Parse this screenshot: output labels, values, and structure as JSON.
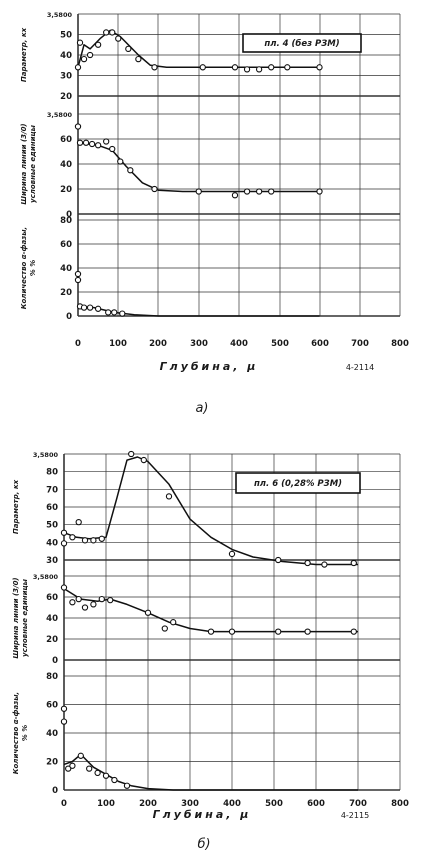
{
  "chart_data": [
    {
      "type": "line",
      "caption": "a)",
      "annotation": "пл. 4 (без РЗМ)",
      "xlabel": "Глубина, μ",
      "figure_code": "4-2114",
      "x_ticks": [
        "0",
        "100",
        "200",
        "300",
        "400",
        "500",
        "600",
        "700",
        "800"
      ],
      "xlim": [
        0,
        800
      ],
      "panels": [
        {
          "ylabel": [
            "Параметр, кх"
          ],
          "ylim": [
            20,
            60
          ],
          "y_ticks": [
            "3,5800",
            "50",
            "40",
            "30",
            "20"
          ],
          "points": [
            [
              0,
              34
            ],
            [
              5,
              46
            ],
            [
              15,
              38
            ],
            [
              30,
              40
            ],
            [
              50,
              45
            ],
            [
              70,
              51
            ],
            [
              85,
              51
            ],
            [
              100,
              48
            ],
            [
              125,
              43
            ],
            [
              150,
              38
            ],
            [
              190,
              34
            ],
            [
              310,
              34
            ],
            [
              390,
              34
            ],
            [
              420,
              33
            ],
            [
              450,
              33
            ],
            [
              480,
              34
            ],
            [
              520,
              34
            ],
            [
              600,
              34
            ]
          ],
          "curve": [
            [
              0,
              34
            ],
            [
              15,
              45
            ],
            [
              30,
              43
            ],
            [
              55,
              48
            ],
            [
              80,
              52
            ],
            [
              105,
              49
            ],
            [
              150,
              40
            ],
            [
              180,
              35
            ],
            [
              220,
              34
            ],
            [
              600,
              34
            ]
          ]
        },
        {
          "ylabel": [
            "Ширина линии (3/0)",
            "условные единицы"
          ],
          "ylim": [
            0,
            80
          ],
          "y_ticks": [
            "3,5800",
            "60",
            "40",
            "20",
            "0"
          ],
          "points": [
            [
              0,
              70
            ],
            [
              5,
              57
            ],
            [
              20,
              57
            ],
            [
              35,
              56
            ],
            [
              50,
              55
            ],
            [
              70,
              58
            ],
            [
              85,
              52
            ],
            [
              105,
              42
            ],
            [
              130,
              35
            ],
            [
              190,
              20
            ],
            [
              300,
              18
            ],
            [
              390,
              15
            ],
            [
              420,
              18
            ],
            [
              450,
              18
            ],
            [
              480,
              18
            ],
            [
              600,
              18
            ]
          ],
          "curve": [
            [
              0,
              57
            ],
            [
              50,
              55
            ],
            [
              85,
              51
            ],
            [
              120,
              38
            ],
            [
              160,
              25
            ],
            [
              200,
              19
            ],
            [
              260,
              18
            ],
            [
              600,
              18
            ]
          ]
        },
        {
          "ylabel": [
            "Количество α-фазы,",
            "% %"
          ],
          "ylim": [
            0,
            80
          ],
          "y_ticks": [
            "80",
            "60",
            "40",
            "20",
            "0"
          ],
          "points": [
            [
              0,
              35
            ],
            [
              0,
              30
            ],
            [
              5,
              8
            ],
            [
              15,
              7
            ],
            [
              30,
              7
            ],
            [
              50,
              6
            ],
            [
              75,
              3
            ],
            [
              90,
              3
            ],
            [
              110,
              2
            ]
          ],
          "curve": [
            [
              0,
              8
            ],
            [
              40,
              7
            ],
            [
              90,
              3
            ],
            [
              140,
              1
            ],
            [
              200,
              0
            ],
            [
              600,
              0
            ]
          ]
        }
      ]
    },
    {
      "type": "line",
      "caption": "б)",
      "annotation": "пл. 6 (0,28% РЗМ)",
      "xlabel": "Глубина, μ",
      "figure_code": "4-2115",
      "x_ticks": [
        "0",
        "100",
        "200",
        "300",
        "400",
        "500",
        "600",
        "700",
        "800"
      ],
      "xlim": [
        0,
        800
      ],
      "panels": [
        {
          "ylabel": [
            "Параметр, кх"
          ],
          "ylim": [
            20,
            90
          ],
          "y_ticks": [
            "3,5800",
            "80",
            "70",
            "60",
            "50",
            "40",
            "30"
          ],
          "points": [
            [
              0,
              38
            ],
            [
              0,
              31
            ],
            [
              20,
              35
            ],
            [
              35,
              45
            ],
            [
              50,
              33
            ],
            [
              70,
              33
            ],
            [
              90,
              34
            ],
            [
              160,
              90
            ],
            [
              190,
              86
            ],
            [
              250,
              62
            ],
            [
              400,
              24
            ],
            [
              510,
              20
            ],
            [
              580,
              18
            ],
            [
              620,
              17
            ],
            [
              690,
              18
            ]
          ],
          "curve": [
            [
              0,
              38
            ],
            [
              30,
              35
            ],
            [
              60,
              34
            ],
            [
              100,
              35
            ],
            [
              125,
              60
            ],
            [
              150,
              86
            ],
            [
              175,
              88
            ],
            [
              200,
              85
            ],
            [
              250,
              70
            ],
            [
              300,
              47
            ],
            [
              350,
              35
            ],
            [
              400,
              27
            ],
            [
              450,
              22
            ],
            [
              520,
              19
            ],
            [
              600,
              17
            ],
            [
              700,
              17
            ]
          ]
        },
        {
          "ylabel": [
            "Ширина линии (3/0)",
            "условные единицы"
          ],
          "ylim": [
            0,
            80
          ],
          "y_ticks": [
            "3,5800",
            "60",
            "40",
            "20",
            "0"
          ],
          "points": [
            [
              0,
              69
            ],
            [
              20,
              55
            ],
            [
              35,
              58
            ],
            [
              50,
              50
            ],
            [
              70,
              53
            ],
            [
              90,
              58
            ],
            [
              110,
              57
            ],
            [
              200,
              45
            ],
            [
              240,
              30
            ],
            [
              260,
              36
            ],
            [
              350,
              27
            ],
            [
              400,
              27
            ],
            [
              510,
              27
            ],
            [
              580,
              27
            ],
            [
              690,
              27
            ]
          ],
          "curve": [
            [
              0,
              68
            ],
            [
              40,
              58
            ],
            [
              80,
              56
            ],
            [
              110,
              58
            ],
            [
              150,
              53
            ],
            [
              200,
              45
            ],
            [
              250,
              36
            ],
            [
              300,
              30
            ],
            [
              350,
              27
            ],
            [
              700,
              27
            ]
          ]
        },
        {
          "ylabel": [
            "Количество α-фазы,",
            "% %"
          ],
          "ylim": [
            0,
            80
          ],
          "y_ticks": [
            "80",
            "60",
            "40",
            "20",
            "0"
          ],
          "points": [
            [
              0,
              57
            ],
            [
              0,
              48
            ],
            [
              10,
              15
            ],
            [
              20,
              17
            ],
            [
              40,
              24
            ],
            [
              60,
              15
            ],
            [
              80,
              12
            ],
            [
              100,
              10
            ],
            [
              120,
              7
            ],
            [
              150,
              3
            ]
          ],
          "curve": [
            [
              0,
              18
            ],
            [
              20,
              20
            ],
            [
              40,
              25
            ],
            [
              70,
              16
            ],
            [
              100,
              11
            ],
            [
              130,
              6
            ],
            [
              160,
              3
            ],
            [
              200,
              1
            ],
            [
              260,
              0
            ],
            [
              700,
              0
            ]
          ]
        }
      ]
    }
  ]
}
